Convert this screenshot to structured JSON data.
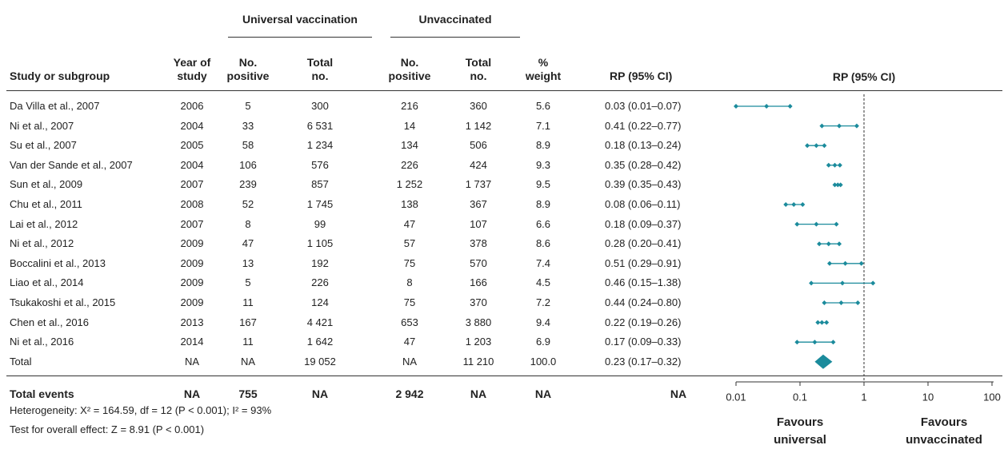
{
  "group_headers": [
    "Universal vaccination",
    "Unvaccinated"
  ],
  "columns": [
    "Study or subgroup",
    "Year of\nstudy",
    "No.\npositive",
    "Total\nno.",
    "No.\npositive",
    "Total\nno.",
    "%\nweight",
    "RP (95% CI)"
  ],
  "rows": [
    [
      "Da Villa et al., 2007",
      "2006",
      "5",
      "300",
      "216",
      "360",
      "5.6",
      "0.03 (0.01–0.07)"
    ],
    [
      "Ni et al., 2007",
      "2004",
      "33",
      "6 531",
      "14",
      "1 142",
      "7.1",
      "0.41 (0.22–0.77)"
    ],
    [
      "Su et al., 2007",
      "2005",
      "58",
      "1 234",
      "134",
      "506",
      "8.9",
      "0.18 (0.13–0.24)"
    ],
    [
      "Van der Sande et al., 2007",
      "2004",
      "106",
      "576",
      "226",
      "424",
      "9.3",
      "0.35 (0.28–0.42)"
    ],
    [
      "Sun et al., 2009",
      "2007",
      "239",
      "857",
      "1 252",
      "1 737",
      "9.5",
      "0.39 (0.35–0.43)"
    ],
    [
      "Chu et al., 2011",
      "2008",
      "52",
      "1 745",
      "138",
      "367",
      "8.9",
      "0.08 (0.06–0.11)"
    ],
    [
      "Lai et al., 2012",
      "2007",
      "8",
      "99",
      "47",
      "107",
      "6.6",
      "0.18 (0.09–0.37)"
    ],
    [
      "Ni et al., 2012",
      "2009",
      "47",
      "1 105",
      "57",
      "378",
      "8.6",
      "0.28 (0.20–0.41)"
    ],
    [
      "Boccalini et al., 2013",
      "2009",
      "13",
      "192",
      "75",
      "570",
      "7.4",
      "0.51 (0.29–0.91)"
    ],
    [
      "Liao et al., 2014",
      "2009",
      "5",
      "226",
      "8",
      "166",
      "4.5",
      "0.46 (0.15–1.38)"
    ],
    [
      "Tsukakoshi et al., 2015",
      "2009",
      "11",
      "124",
      "75",
      "370",
      "7.2",
      "0.44 (0.24–0.80)"
    ],
    [
      "Chen et al., 2016",
      "2013",
      "167",
      "4 421",
      "653",
      "3 880",
      "9.4",
      "0.22 (0.19–0.26)"
    ],
    [
      "Ni et al., 2016",
      "2014",
      "11",
      "1 642",
      "47",
      "1 203",
      "6.9",
      "0.17 (0.09–0.33)"
    ],
    [
      "Total",
      "NA",
      "NA",
      "19 052",
      "NA",
      "11 210",
      "100.0",
      "0.23 (0.17–0.32)"
    ]
  ],
  "total_events": [
    "Total events",
    "NA",
    "755",
    "NA",
    "2 942",
    "NA",
    "NA",
    "NA"
  ],
  "notes": [
    "Heterogeneity: X² = 164.59, df = 12 (P < 0.001); I² = 93%",
    "Test for overall effect: Z = 8.91 (P < 0.001)"
  ],
  "chart_data": {
    "type": "forest",
    "title": "RP (95% CI)",
    "values": [
      0.03,
      0.41,
      0.18,
      0.35,
      0.39,
      0.08,
      0.18,
      0.28,
      0.51,
      0.46,
      0.44,
      0.22,
      0.17
    ],
    "low": [
      0.01,
      0.22,
      0.13,
      0.28,
      0.35,
      0.06,
      0.09,
      0.2,
      0.29,
      0.15,
      0.24,
      0.19,
      0.09
    ],
    "high": [
      0.07,
      0.77,
      0.24,
      0.42,
      0.43,
      0.11,
      0.37,
      0.41,
      0.91,
      1.38,
      0.8,
      0.26,
      0.33
    ],
    "summary": {
      "value": 0.23,
      "low": 0.17,
      "high": 0.32
    },
    "reference": 1,
    "color": "#1b8b9c",
    "log_x": true,
    "xlim": [
      0.01,
      100
    ],
    "xticks": [
      0.01,
      0.1,
      1,
      10,
      100
    ],
    "left_label": "Favours\nuniversal",
    "right_label": "Favours\nunvaccinated"
  }
}
